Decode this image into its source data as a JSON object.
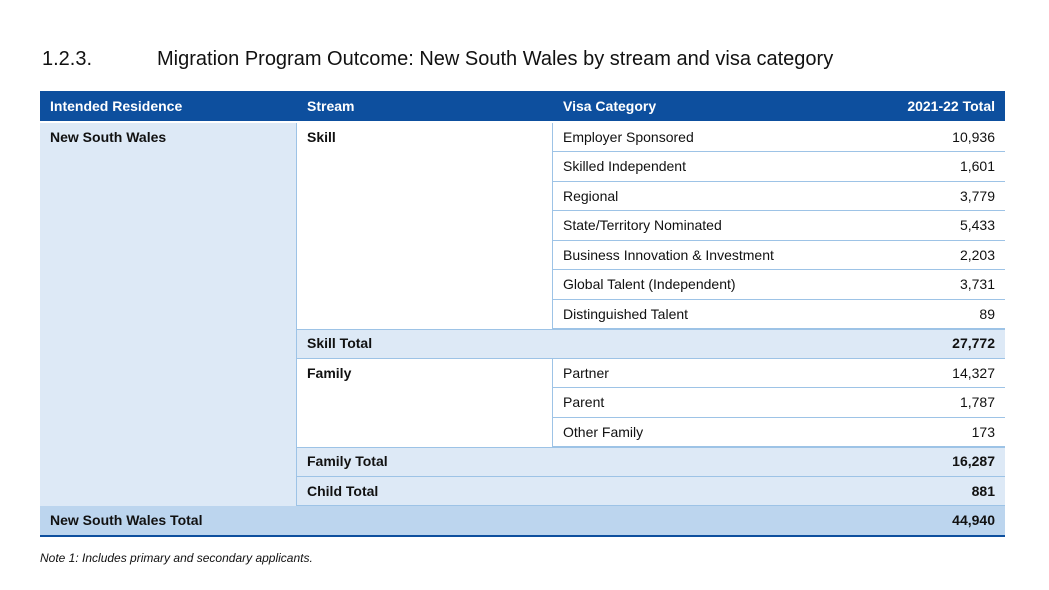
{
  "header": {
    "number": "1.2.3.",
    "title": "Migration Program Outcome: New South Wales by stream and visa category"
  },
  "table": {
    "columns": [
      "Intended Residence",
      "Stream",
      "Visa Category",
      "2021-22 Total"
    ],
    "residence": "New South Wales",
    "streams": [
      {
        "name": "Skill",
        "categories": [
          {
            "name": "Employer Sponsored",
            "total": "10,936"
          },
          {
            "name": "Skilled Independent",
            "total": "1,601"
          },
          {
            "name": "Regional",
            "total": "3,779"
          },
          {
            "name": "State/Territory Nominated",
            "total": "5,433"
          },
          {
            "name": "Business Innovation & Investment",
            "total": "2,203"
          },
          {
            "name": "Global Talent (Independent)",
            "total": "3,731"
          },
          {
            "name": "Distinguished Talent",
            "total": "89"
          }
        ],
        "total_label": "Skill Total",
        "total": "27,772"
      },
      {
        "name": "Family",
        "categories": [
          {
            "name": "Partner",
            "total": "14,327"
          },
          {
            "name": "Parent",
            "total": "1,787"
          },
          {
            "name": "Other Family",
            "total": "173"
          }
        ],
        "total_label": "Family Total",
        "total": "16,287"
      }
    ],
    "child": {
      "label": "Child Total",
      "total": "881"
    },
    "grand": {
      "label": "New South Wales Total",
      "total": "44,940"
    }
  },
  "note": "Note 1: Includes primary and secondary applicants."
}
